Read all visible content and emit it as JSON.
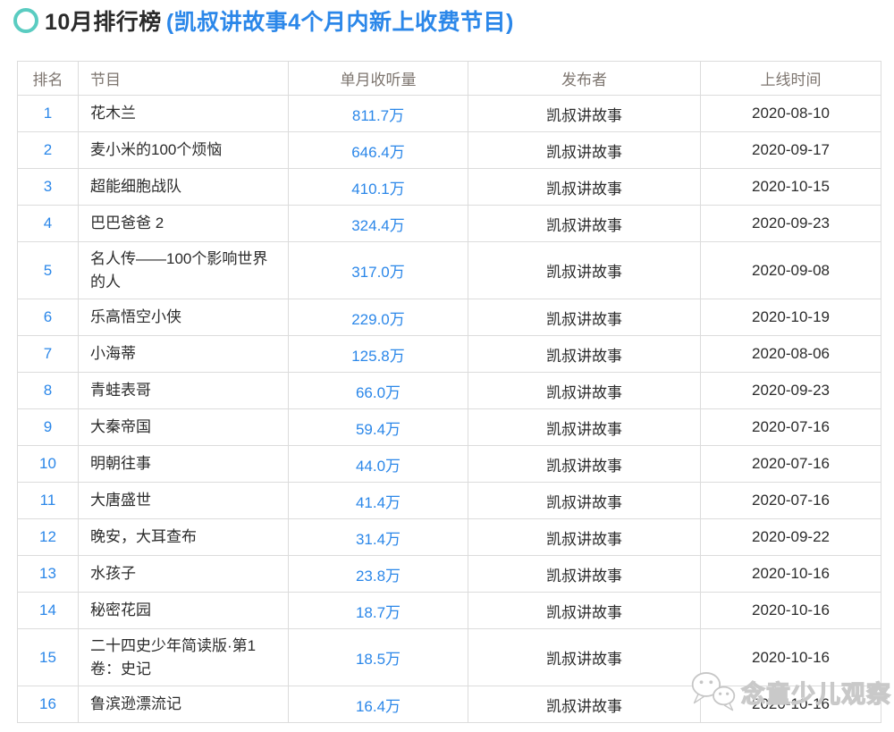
{
  "page_title": {
    "main": "10月排行榜",
    "sub": "(凯叔讲故事4个月内新上收费节目)"
  },
  "colors": {
    "accent_blue": "#2b87e9",
    "ring_teal": "#5accc1",
    "header_text": "#7d756f",
    "body_text": "#2b2b2b",
    "border": "#dcdcdc",
    "watermark_gray": "#c9c9c9"
  },
  "chart_data": {
    "type": "table",
    "title": "10月排行榜 (凯叔讲故事4个月内新上收费节目)",
    "columns": [
      {
        "key": "rank",
        "label": "排名"
      },
      {
        "key": "program",
        "label": "节目"
      },
      {
        "key": "listens",
        "label": "单月收听量"
      },
      {
        "key": "publisher",
        "label": "发布者"
      },
      {
        "key": "date",
        "label": "上线时间"
      }
    ],
    "rows": [
      {
        "rank": "1",
        "program": "花木兰",
        "listens": "811.7万",
        "publisher": "凯叔讲故事",
        "date": "2020-08-10"
      },
      {
        "rank": "2",
        "program": "麦小米的100个烦恼",
        "listens": "646.4万",
        "publisher": "凯叔讲故事",
        "date": "2020-09-17"
      },
      {
        "rank": "3",
        "program": "超能细胞战队",
        "listens": "410.1万",
        "publisher": "凯叔讲故事",
        "date": "2020-10-15"
      },
      {
        "rank": "4",
        "program": "巴巴爸爸 2",
        "listens": "324.4万",
        "publisher": "凯叔讲故事",
        "date": "2020-09-23"
      },
      {
        "rank": "5",
        "program": "名人传——100个影响世界的人",
        "listens": "317.0万",
        "publisher": "凯叔讲故事",
        "date": "2020-09-08"
      },
      {
        "rank": "6",
        "program": "乐高悟空小侠",
        "listens": "229.0万",
        "publisher": "凯叔讲故事",
        "date": "2020-10-19"
      },
      {
        "rank": "7",
        "program": "小海蒂",
        "listens": "125.8万",
        "publisher": "凯叔讲故事",
        "date": "2020-08-06"
      },
      {
        "rank": "8",
        "program": "青蛙表哥",
        "listens": "66.0万",
        "publisher": "凯叔讲故事",
        "date": "2020-09-23"
      },
      {
        "rank": "9",
        "program": "大秦帝国",
        "listens": "59.4万",
        "publisher": "凯叔讲故事",
        "date": "2020-07-16"
      },
      {
        "rank": "10",
        "program": "明朝往事",
        "listens": "44.0万",
        "publisher": "凯叔讲故事",
        "date": "2020-07-16"
      },
      {
        "rank": "11",
        "program": "大唐盛世",
        "listens": "41.4万",
        "publisher": "凯叔讲故事",
        "date": "2020-07-16"
      },
      {
        "rank": "12",
        "program": "晚安，大耳查布",
        "listens": "31.4万",
        "publisher": "凯叔讲故事",
        "date": "2020-09-22"
      },
      {
        "rank": "13",
        "program": "水孩子",
        "listens": "23.8万",
        "publisher": "凯叔讲故事",
        "date": "2020-10-16"
      },
      {
        "rank": "14",
        "program": "秘密花园",
        "listens": "18.7万",
        "publisher": "凯叔讲故事",
        "date": "2020-10-16"
      },
      {
        "rank": "15",
        "program": "二十四史少年简读版·第1卷：史记",
        "listens": "18.5万",
        "publisher": "凯叔讲故事",
        "date": "2020-10-16"
      },
      {
        "rank": "16",
        "program": "鲁滨逊漂流记",
        "listens": "16.4万",
        "publisher": "凯叔讲故事",
        "date": "2020-10-16"
      }
    ]
  },
  "watermark": {
    "icon": "wechat-icon",
    "label": "念童少儿观察"
  }
}
